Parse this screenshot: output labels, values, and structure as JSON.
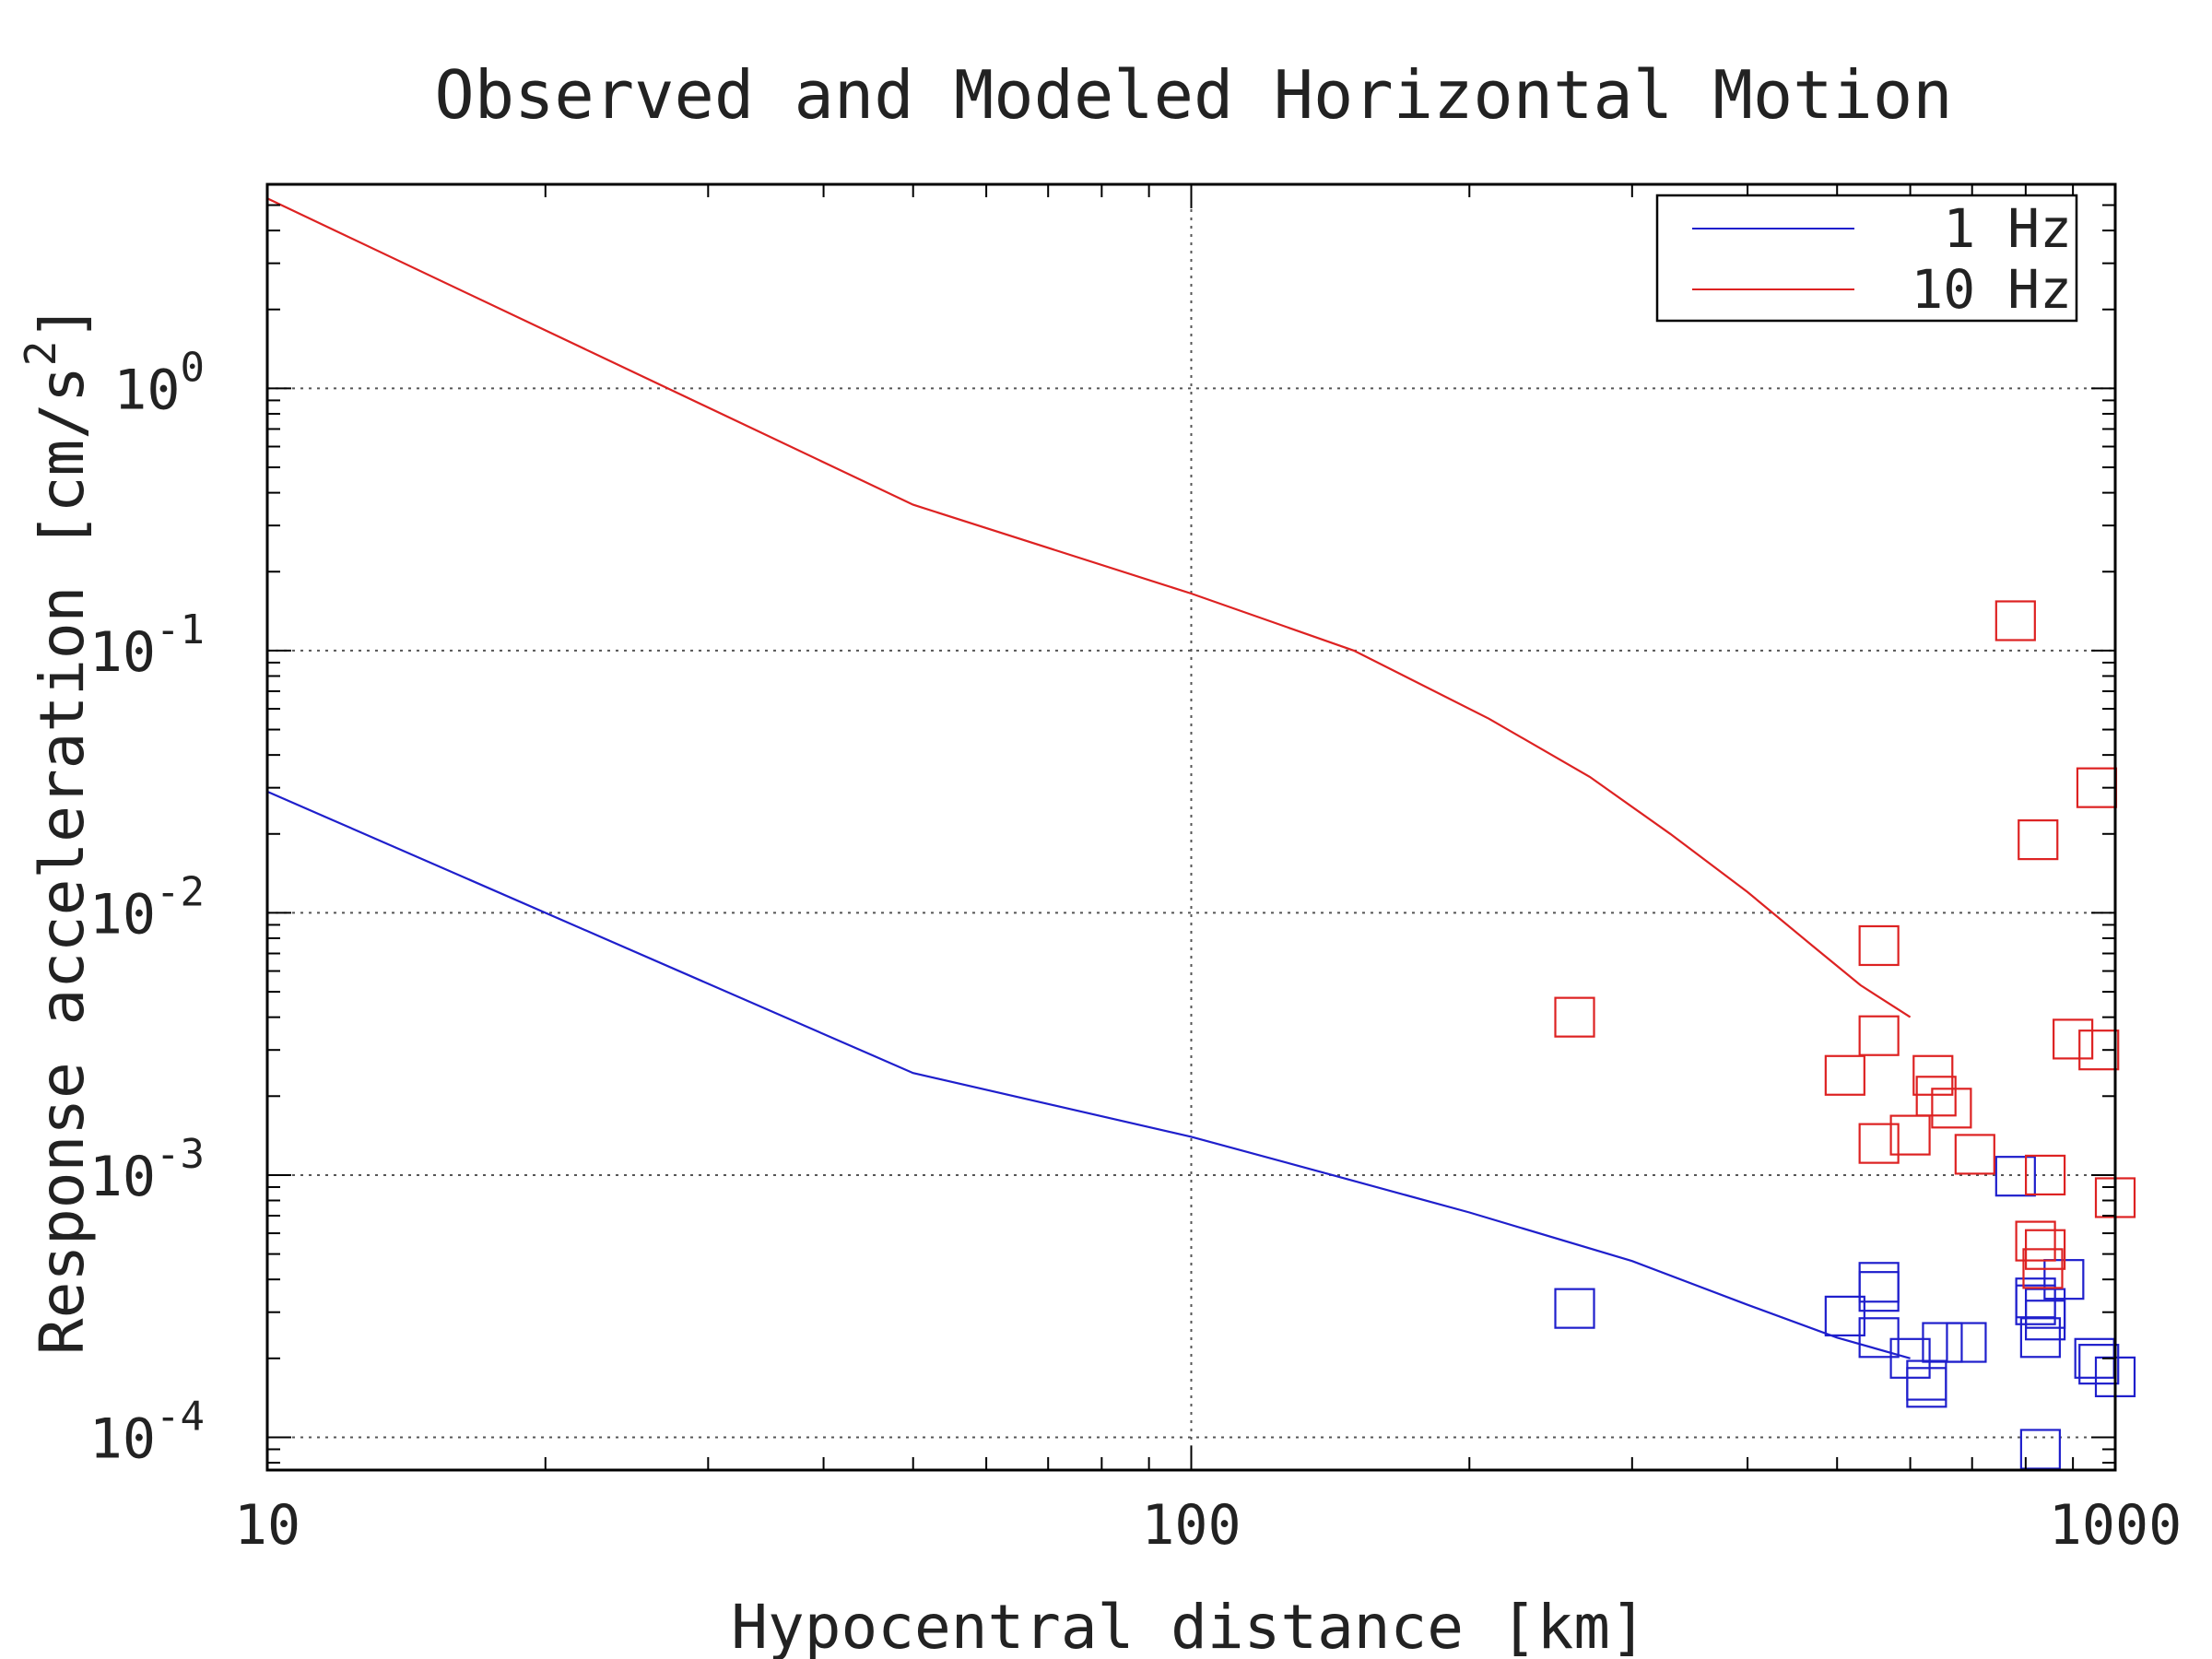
{
  "chart_data": {
    "type": "scatter",
    "title": "Observed and Modeled Horizontal Motion",
    "xlabel": "Hypocentral distance [km]",
    "ylabel_main": "Response acceleration [cm/s",
    "ylabel_sup": "2",
    "ylabel_close": "]",
    "x_scale": "log",
    "y_scale": "log",
    "xlim": [
      10,
      1000
    ],
    "ylim": [
      7.5e-05,
      6.0
    ],
    "grid": true,
    "legend_position": "top-right",
    "x_ticks": [
      {
        "value": 10,
        "label": "10"
      },
      {
        "value": 100,
        "label": "100"
      },
      {
        "value": 1000,
        "label": "1000"
      }
    ],
    "y_ticks": [
      {
        "value": 0.0001,
        "base": "10",
        "exp": "-4"
      },
      {
        "value": 0.001,
        "base": "10",
        "exp": "-3"
      },
      {
        "value": 0.01,
        "base": "10",
        "exp": "-2"
      },
      {
        "value": 0.1,
        "base": "10",
        "exp": "-1"
      },
      {
        "value": 1,
        "base": "10",
        "exp": "0"
      }
    ],
    "series": [
      {
        "name": "1 Hz",
        "color": "#1f1fcc",
        "model_x": [
          10,
          50,
          100,
          150,
          200,
          300,
          400,
          500,
          600
        ],
        "model_y": [
          0.029,
          0.00245,
          0.0014,
          0.00095,
          0.00072,
          0.00047,
          0.00032,
          0.00024,
          0.0002
        ],
        "observed": [
          {
            "x": 260,
            "y": 0.00031
          },
          {
            "x": 510,
            "y": 0.00029
          },
          {
            "x": 555,
            "y": 0.00039
          },
          {
            "x": 555,
            "y": 0.00036
          },
          {
            "x": 555,
            "y": 0.00024
          },
          {
            "x": 600,
            "y": 0.0002
          },
          {
            "x": 625,
            "y": 0.000165
          },
          {
            "x": 625,
            "y": 0.000155
          },
          {
            "x": 650,
            "y": 0.00023
          },
          {
            "x": 690,
            "y": 0.00023
          },
          {
            "x": 780,
            "y": 0.00099
          },
          {
            "x": 820,
            "y": 0.00034
          },
          {
            "x": 820,
            "y": 0.00032
          },
          {
            "x": 840,
            "y": 0.00031
          },
          {
            "x": 840,
            "y": 0.00028
          },
          {
            "x": 830,
            "y": 0.00024
          },
          {
            "x": 880,
            "y": 0.0004
          },
          {
            "x": 830,
            "y": 9e-05
          },
          {
            "x": 960,
            "y": 0.00019
          },
          {
            "x": 1000,
            "y": 0.00017
          },
          {
            "x": 950,
            "y": 0.0002
          }
        ]
      },
      {
        "name": "10 Hz",
        "color": "#dd2222",
        "model_x": [
          10,
          50,
          100,
          150,
          210,
          270,
          330,
          400,
          470,
          530,
          600
        ],
        "model_y": [
          5.3,
          0.36,
          0.165,
          0.1,
          0.055,
          0.033,
          0.02,
          0.012,
          0.0075,
          0.0053,
          0.004
        ],
        "observed": [
          {
            "x": 260,
            "y": 0.004
          },
          {
            "x": 510,
            "y": 0.0024
          },
          {
            "x": 555,
            "y": 0.0075
          },
          {
            "x": 555,
            "y": 0.0034
          },
          {
            "x": 555,
            "y": 0.00132
          },
          {
            "x": 600,
            "y": 0.00142
          },
          {
            "x": 635,
            "y": 0.0024
          },
          {
            "x": 640,
            "y": 0.002
          },
          {
            "x": 665,
            "y": 0.0018
          },
          {
            "x": 705,
            "y": 0.0012
          },
          {
            "x": 780,
            "y": 0.13
          },
          {
            "x": 825,
            "y": 0.019
          },
          {
            "x": 840,
            "y": 0.001
          },
          {
            "x": 820,
            "y": 0.00056
          },
          {
            "x": 840,
            "y": 0.00052
          },
          {
            "x": 835,
            "y": 0.00044
          },
          {
            "x": 900,
            "y": 0.0033
          },
          {
            "x": 960,
            "y": 0.003
          },
          {
            "x": 955,
            "y": 0.03
          },
          {
            "x": 1000,
            "y": 0.00082
          }
        ]
      }
    ]
  }
}
